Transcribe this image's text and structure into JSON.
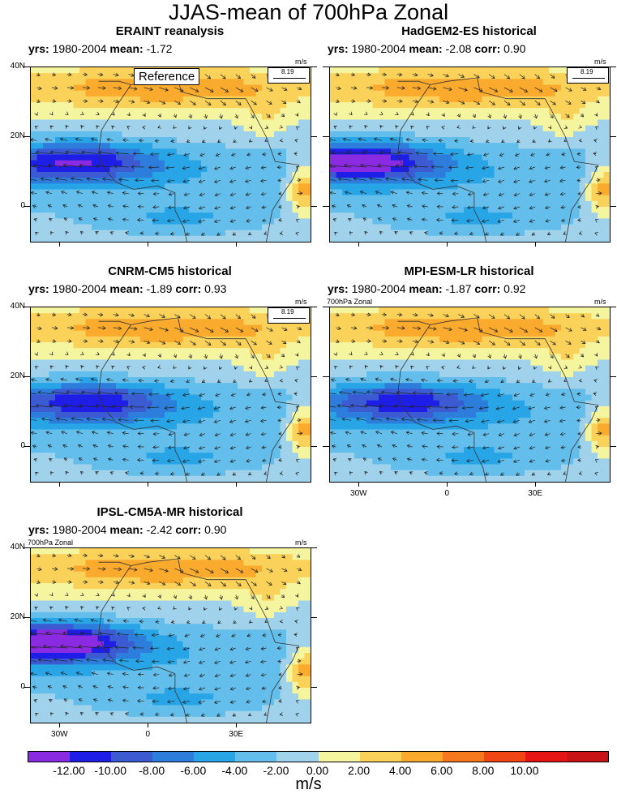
{
  "title": "JJAS-mean of 700hPa Zonal",
  "chart_data": [
    {
      "type": "heatmap",
      "title": "ERAINT reanalysis",
      "yrs": "1980-2004",
      "mean": "-1.72",
      "corr": null,
      "annotation": "Reference",
      "vector_unit": "m/s",
      "vector_ref": "8.19",
      "ylabels": [
        "40N",
        "20N",
        "0"
      ],
      "xlabels": []
    },
    {
      "type": "heatmap",
      "title": "HadGEM2-ES historical",
      "yrs": "1980-2004",
      "mean": "-2.08",
      "corr": "0.90",
      "vector_unit": "m/s",
      "vector_ref": "8.19",
      "ylabels": [],
      "xlabels": []
    },
    {
      "type": "heatmap",
      "title": "CNRM-CM5 historical",
      "yrs": "1980-2004",
      "mean": "-1.89",
      "corr": "0.93",
      "vector_unit": "m/s",
      "vector_ref": "8.19",
      "ylabels": [
        "40N",
        "20N",
        "0"
      ],
      "xlabels": []
    },
    {
      "type": "heatmap",
      "title": "MPI-ESM-LR historical",
      "yrs": "1980-2004",
      "mean": "-1.87",
      "corr": "0.92",
      "vector_unit": "m/s",
      "small_label": "700hPa Zonal",
      "ylabels": [],
      "xlabels": [
        "30W",
        "0",
        "30E"
      ]
    },
    {
      "type": "heatmap",
      "title": "IPSL-CM5A-MR historical",
      "yrs": "1980-2004",
      "mean": "-2.42",
      "corr": "0.90",
      "vector_unit": "m/s",
      "small_label": "700hPa Zonal",
      "ylabels": [
        "40N",
        "20N",
        "0"
      ],
      "xlabels": [
        "30W",
        "0",
        "30E"
      ]
    }
  ],
  "labels": {
    "yrs": "yrs:",
    "mean": "mean:",
    "corr": "corr:"
  },
  "colorbar": {
    "unit": "m/s",
    "labels": [
      "-12.00",
      "-10.00",
      "-8.00",
      "-6.00",
      "-4.00",
      "-2.00",
      "0.00",
      "2.00",
      "4.00",
      "6.00",
      "8.00",
      "10.00"
    ],
    "colors": [
      "#8A2BE2",
      "#1E1EE6",
      "#3C5AD2",
      "#2D7DDC",
      "#28A5E6",
      "#64BEEB",
      "#A0D2EB",
      "#F5F5A0",
      "#FAD25A",
      "#FAAA2D",
      "#F5781E",
      "#F04614",
      "#E61414",
      "#C81414"
    ]
  }
}
